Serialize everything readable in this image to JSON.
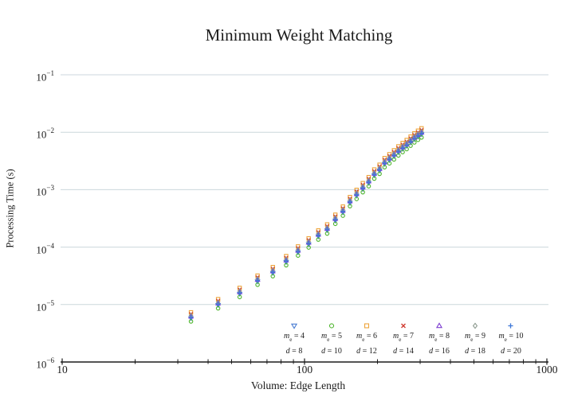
{
  "title": "Minimum Weight Matching",
  "axes": {
    "x_label": "Volume: Edge Length",
    "y_label": "Processing Time (s)"
  },
  "colors": {
    "background": "#ffffff",
    "grid": "#ccd7dc",
    "axis": "#1c1c1c",
    "text": "#1c1c1c"
  },
  "chart_data": {
    "type": "scatter",
    "title": "Minimum Weight Matching",
    "xlabel": "Volume: Edge Length",
    "ylabel": "Processing Time (s)",
    "x_scale": "log",
    "y_scale": "log",
    "xlim": [
      10,
      1000
    ],
    "ylim": [
      1e-06,
      0.1
    ],
    "grid": "horizontal-only",
    "legend_position": "inside-lower-right",
    "x_ticks": [
      10,
      100,
      1000
    ],
    "y_tick_exponents": [
      -1,
      -2,
      -3,
      -4,
      -5,
      -6
    ],
    "x": [
      34,
      44,
      54,
      64,
      74,
      84,
      94,
      104,
      114,
      124,
      134,
      144,
      154,
      164,
      174,
      184,
      194,
      204,
      214,
      224,
      234,
      244,
      254,
      264,
      274,
      284,
      294,
      304
    ],
    "base_values": [
      6.2e-06,
      1.05e-05,
      1.65e-05,
      2.7e-05,
      3.8e-05,
      5.9e-05,
      8.7e-05,
      0.00012,
      0.000165,
      0.00021,
      0.00031,
      0.00043,
      0.00063,
      0.00084,
      0.0011,
      0.0014,
      0.0019,
      0.0023,
      0.003,
      0.0035,
      0.0041,
      0.0048,
      0.0055,
      0.0062,
      0.0071,
      0.0081,
      0.009,
      0.0099
    ],
    "series": [
      {
        "name": "me=4 d=8",
        "marker": "triangle-down",
        "color": "#4a7dd2",
        "offset_factor": 0.93,
        "legend_line1": {
          "var": "m",
          "sub": "e",
          "value": "4"
        },
        "legend_line2": {
          "var": "d",
          "value": "8"
        }
      },
      {
        "name": "me=5 d=10",
        "marker": "circle",
        "color": "#4eb52e",
        "offset_factor": 0.82,
        "legend_line1": {
          "var": "m",
          "sub": "e",
          "value": "5"
        },
        "legend_line2": {
          "var": "d",
          "value": "10"
        }
      },
      {
        "name": "me=6 d=12",
        "marker": "square",
        "color": "#eda43b",
        "offset_factor": 1.18,
        "legend_line1": {
          "var": "m",
          "sub": "e",
          "value": "6"
        },
        "legend_line2": {
          "var": "d",
          "value": "12"
        }
      },
      {
        "name": "me=7 d=14",
        "marker": "x",
        "color": "#d03a30",
        "offset_factor": 1.1,
        "legend_line1": {
          "var": "m",
          "sub": "e",
          "value": "7"
        },
        "legend_line2": {
          "var": "d",
          "value": "14"
        }
      },
      {
        "name": "me=8 d=16",
        "marker": "triangle-up",
        "color": "#7e3fd1",
        "offset_factor": 1.0,
        "legend_line1": {
          "var": "m",
          "sub": "e",
          "value": "8"
        },
        "legend_line2": {
          "var": "d",
          "value": "16"
        }
      },
      {
        "name": "me=9 d=18",
        "marker": "diamond",
        "color": "#8f9c92",
        "offset_factor": 1.04,
        "legend_line1": {
          "var": "m",
          "sub": "e",
          "value": "9"
        },
        "legend_line2": {
          "var": "d",
          "value": "18"
        }
      },
      {
        "name": "me=10 d=20",
        "marker": "plus",
        "color": "#3f78d8",
        "offset_factor": 0.97,
        "legend_line1": {
          "var": "m",
          "sub": "e",
          "value": "10"
        },
        "legend_line2": {
          "var": "d",
          "value": "20"
        }
      }
    ]
  }
}
